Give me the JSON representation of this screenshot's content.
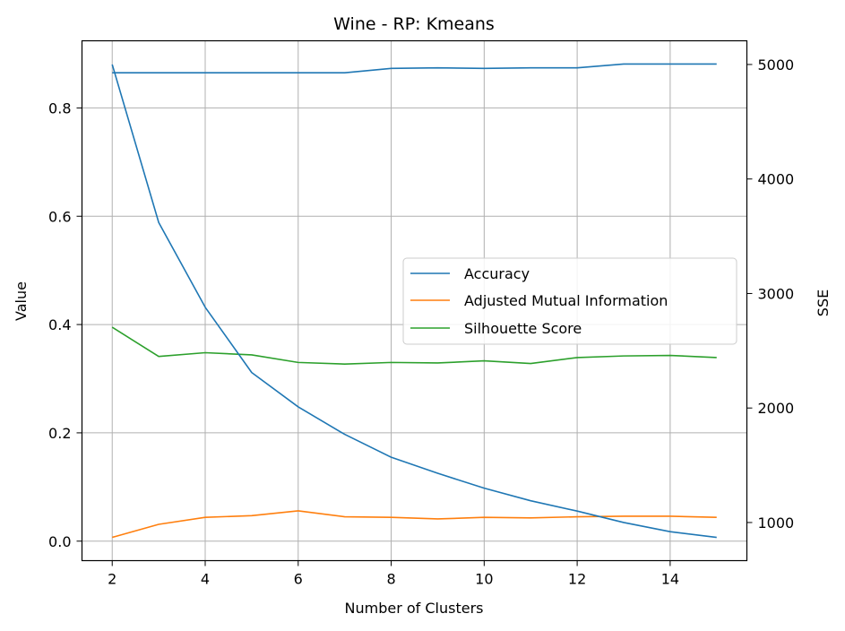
{
  "chart_data": {
    "type": "line",
    "title": "Wine - RP: Kmeans",
    "xlabel": "Number of Clusters",
    "ylabel": "Value",
    "ylabel_right": "SSE",
    "x": [
      2,
      3,
      4,
      5,
      6,
      7,
      8,
      9,
      10,
      11,
      12,
      13,
      14,
      15
    ],
    "xlim": [
      1.35,
      15.65
    ],
    "ylim": [
      -0.036,
      0.924
    ],
    "ylim_right": [
      667,
      5207
    ],
    "xticks": [
      2,
      4,
      6,
      8,
      10,
      12,
      14
    ],
    "yticks": [
      0.0,
      0.2,
      0.4,
      0.6,
      0.8
    ],
    "yticks_right": [
      1000,
      2000,
      3000,
      4000,
      5000
    ],
    "grid": true,
    "legend_position": "center-right",
    "series": [
      {
        "name": "Accuracy",
        "axis": "left",
        "color": "#1f77b4",
        "values": [
          0.865,
          0.865,
          0.865,
          0.865,
          0.865,
          0.865,
          0.873,
          0.874,
          0.873,
          0.874,
          0.874,
          0.881,
          0.881,
          0.881
        ]
      },
      {
        "name": "Adjusted Mutual Information",
        "axis": "left",
        "color": "#ff7f0e",
        "values": [
          0.007,
          0.031,
          0.044,
          0.047,
          0.056,
          0.045,
          0.044,
          0.041,
          0.044,
          0.043,
          0.045,
          0.046,
          0.046,
          0.044
        ]
      },
      {
        "name": "Silhouette Score",
        "axis": "left",
        "color": "#2ca02c",
        "values": [
          0.395,
          0.341,
          0.348,
          0.344,
          0.33,
          0.327,
          0.33,
          0.329,
          0.333,
          0.328,
          0.339,
          0.342,
          0.343,
          0.339
        ]
      },
      {
        "axis": "right",
        "color": "#1f77b4",
        "values": [
          5000,
          3620,
          2880,
          2310,
          2010,
          1770,
          1570,
          1430,
          1300,
          1190,
          1100,
          1000,
          920,
          870
        ]
      }
    ]
  }
}
